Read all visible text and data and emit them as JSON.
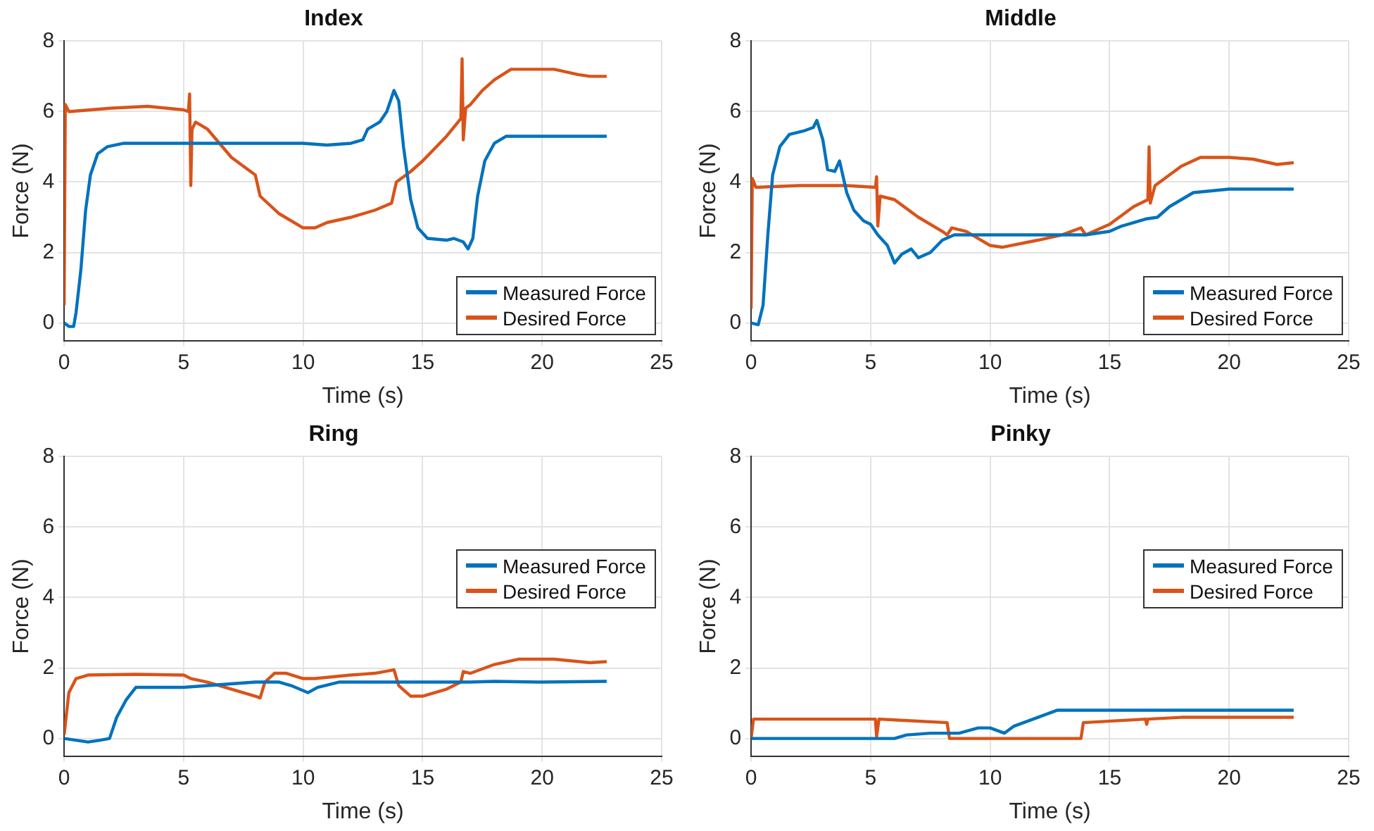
{
  "chart_data": [
    {
      "type": "line",
      "title": "Index",
      "xlabel": "Time (s)",
      "ylabel": "Force (N)",
      "xlim": [
        0,
        25
      ],
      "ylim": [
        -0.5,
        8
      ],
      "xticks": [
        0,
        5,
        10,
        15,
        20,
        25
      ],
      "yticks": [
        0,
        2,
        4,
        6,
        8
      ],
      "grid": true,
      "legend": "bottom right",
      "marker": "none",
      "line_style": "solid",
      "series": [
        {
          "name": "Measured Force",
          "color": "#0072bd",
          "x": [
            0,
            0.2,
            0.4,
            0.5,
            0.7,
            0.9,
            1.1,
            1.4,
            1.8,
            2.5,
            5,
            10,
            11,
            12,
            12.5,
            12.7,
            13.2,
            13.5,
            13.8,
            14,
            14.2,
            14.5,
            14.8,
            15.2,
            16,
            16.3,
            16.7,
            16.9,
            17.1,
            17.3,
            17.6,
            18,
            18.5,
            20,
            22.7
          ],
          "values": [
            0,
            -0.1,
            -0.1,
            0.3,
            1.5,
            3.2,
            4.2,
            4.8,
            5,
            5.1,
            5.1,
            5.1,
            5.05,
            5.1,
            5.2,
            5.5,
            5.7,
            6,
            6.6,
            6.3,
            5,
            3.5,
            2.7,
            2.4,
            2.35,
            2.4,
            2.3,
            2.1,
            2.4,
            3.6,
            4.6,
            5.1,
            5.3,
            5.3,
            5.3
          ]
        },
        {
          "name": "Desired Force",
          "color": "#d95319",
          "x": [
            0,
            0.05,
            0.2,
            2,
            3.5,
            5,
            5.2,
            5.25,
            5.3,
            5.35,
            5.5,
            6,
            7,
            8,
            8.2,
            9,
            10,
            10.5,
            11,
            12,
            13,
            13.7,
            13.9,
            14.5,
            15,
            16,
            16.6,
            16.65,
            16.7,
            16.8,
            17,
            17.5,
            18,
            18.7,
            19.5,
            20.5,
            21.5,
            22,
            22.7
          ],
          "values": [
            0.5,
            6.2,
            6,
            6.1,
            6.15,
            6.05,
            6,
            6.5,
            3.9,
            5.5,
            5.7,
            5.5,
            4.7,
            4.2,
            3.6,
            3.1,
            2.7,
            2.7,
            2.85,
            3,
            3.2,
            3.4,
            4,
            4.3,
            4.6,
            5.3,
            5.8,
            7.5,
            5.2,
            6.1,
            6.2,
            6.6,
            6.9,
            7.2,
            7.2,
            7.2,
            7.05,
            7,
            7
          ]
        }
      ]
    },
    {
      "type": "line",
      "title": "Middle",
      "xlabel": "Time (s)",
      "ylabel": "Force (N)",
      "xlim": [
        0,
        25
      ],
      "ylim": [
        -0.5,
        8
      ],
      "xticks": [
        0,
        5,
        10,
        15,
        20,
        25
      ],
      "yticks": [
        0,
        2,
        4,
        6,
        8
      ],
      "grid": true,
      "legend": "bottom right",
      "marker": "none",
      "line_style": "solid",
      "series": [
        {
          "name": "Measured Force",
          "color": "#0072bd",
          "x": [
            0,
            0.3,
            0.5,
            0.7,
            0.9,
            1.2,
            1.6,
            2.2,
            2.6,
            2.75,
            3,
            3.2,
            3.5,
            3.7,
            4,
            4.3,
            4.7,
            5,
            5.3,
            5.7,
            6,
            6.3,
            6.7,
            7,
            7.5,
            8,
            8.5,
            10,
            13,
            14,
            15,
            15.5,
            16.5,
            17,
            17.5,
            18,
            18.5,
            20,
            22.7
          ],
          "values": [
            0,
            -0.05,
            0.5,
            2.5,
            4.2,
            5,
            5.35,
            5.45,
            5.55,
            5.75,
            5.2,
            4.35,
            4.3,
            4.6,
            3.7,
            3.2,
            2.9,
            2.8,
            2.5,
            2.2,
            1.7,
            1.95,
            2.1,
            1.85,
            2,
            2.35,
            2.5,
            2.5,
            2.5,
            2.5,
            2.6,
            2.75,
            2.95,
            3,
            3.3,
            3.5,
            3.7,
            3.8,
            3.8
          ]
        },
        {
          "name": "Desired Force",
          "color": "#d95319",
          "x": [
            0,
            0.05,
            0.2,
            2,
            4,
            5.2,
            5.25,
            5.3,
            5.4,
            6,
            7,
            8,
            8.2,
            8.4,
            9,
            10,
            10.5,
            12,
            13,
            13.8,
            14,
            15,
            16,
            16.6,
            16.65,
            16.7,
            16.9,
            17.3,
            18,
            18.8,
            20,
            21,
            22,
            22.7
          ],
          "values": [
            0.4,
            4.1,
            3.85,
            3.9,
            3.9,
            3.85,
            4.15,
            2.75,
            3.6,
            3.5,
            3,
            2.6,
            2.5,
            2.7,
            2.6,
            2.2,
            2.15,
            2.35,
            2.5,
            2.7,
            2.5,
            2.8,
            3.3,
            3.5,
            5,
            3.4,
            3.9,
            4.1,
            4.45,
            4.7,
            4.7,
            4.65,
            4.5,
            4.55
          ]
        }
      ]
    },
    {
      "type": "line",
      "title": "Ring",
      "xlabel": "Time (s)",
      "ylabel": "Force (N)",
      "xlim": [
        0,
        25
      ],
      "ylim": [
        -0.5,
        8
      ],
      "xticks": [
        0,
        5,
        10,
        15,
        20,
        25
      ],
      "yticks": [
        0,
        2,
        4,
        6,
        8
      ],
      "grid": true,
      "legend": "right",
      "marker": "none",
      "line_style": "solid",
      "series": [
        {
          "name": "Measured Force",
          "color": "#0072bd",
          "x": [
            0,
            0.5,
            1,
            1.5,
            1.9,
            2.2,
            2.6,
            3,
            4,
            5,
            6,
            7,
            8,
            9,
            9.5,
            10.2,
            10.6,
            11.5,
            13,
            15,
            17,
            18,
            20,
            22.7
          ],
          "values": [
            0,
            -0.05,
            -0.1,
            -0.05,
            0,
            0.6,
            1.1,
            1.45,
            1.45,
            1.45,
            1.5,
            1.55,
            1.6,
            1.6,
            1.5,
            1.3,
            1.45,
            1.6,
            1.6,
            1.6,
            1.6,
            1.62,
            1.6,
            1.62
          ]
        },
        {
          "name": "Desired Force",
          "color": "#d95319",
          "x": [
            0,
            0.2,
            0.5,
            1,
            3,
            5,
            5.3,
            6,
            7,
            8,
            8.2,
            8.4,
            8.8,
            9.3,
            10,
            10.5,
            12,
            13,
            13.8,
            14,
            14.5,
            15,
            16,
            16.6,
            16.7,
            17,
            18,
            19,
            20.5,
            22,
            22.7
          ],
          "values": [
            0.1,
            1.3,
            1.7,
            1.8,
            1.82,
            1.8,
            1.7,
            1.6,
            1.4,
            1.2,
            1.15,
            1.6,
            1.85,
            1.85,
            1.7,
            1.7,
            1.8,
            1.85,
            1.95,
            1.5,
            1.2,
            1.2,
            1.4,
            1.6,
            1.9,
            1.85,
            2.1,
            2.25,
            2.25,
            2.15,
            2.18
          ]
        }
      ]
    },
    {
      "type": "line",
      "title": "Pinky",
      "xlabel": "Time (s)",
      "ylabel": "Force (N)",
      "xlim": [
        0,
        25
      ],
      "ylim": [
        -0.5,
        8
      ],
      "xticks": [
        0,
        5,
        10,
        15,
        20,
        25
      ],
      "yticks": [
        0,
        2,
        4,
        6,
        8
      ],
      "grid": true,
      "legend": "right",
      "marker": "none",
      "line_style": "solid",
      "series": [
        {
          "name": "Measured Force",
          "color": "#0072bd",
          "x": [
            0,
            3,
            5,
            6,
            6.5,
            7.5,
            8.3,
            8.7,
            9.5,
            10,
            10.6,
            11,
            12,
            12.8,
            15,
            20,
            22.7
          ],
          "values": [
            0,
            0,
            0,
            0,
            0.1,
            0.15,
            0.15,
            0.15,
            0.3,
            0.3,
            0.15,
            0.35,
            0.6,
            0.8,
            0.8,
            0.8,
            0.8
          ]
        },
        {
          "name": "Desired Force",
          "color": "#d95319",
          "x": [
            0,
            0.1,
            5.2,
            5.25,
            5.35,
            8.2,
            8.3,
            13.8,
            13.9,
            16.5,
            16.55,
            16.6,
            18,
            22.7
          ],
          "values": [
            0,
            0.55,
            0.55,
            0.05,
            0.55,
            0.45,
            0,
            0,
            0.45,
            0.55,
            0.4,
            0.55,
            0.6,
            0.6
          ]
        }
      ]
    }
  ]
}
